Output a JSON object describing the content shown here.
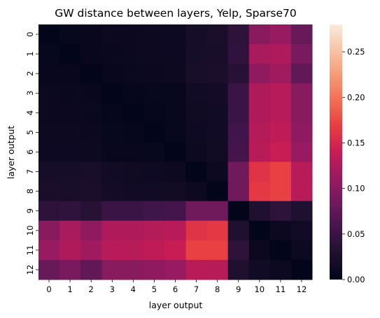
{
  "chart_data": {
    "type": "heatmap",
    "title": "GW distance between layers, Yelp, Sparse70",
    "xlabel": "layer output",
    "ylabel": "layer output",
    "x_categories": [
      "0",
      "1",
      "2",
      "3",
      "4",
      "5",
      "6",
      "7",
      "8",
      "9",
      "10",
      "11",
      "12"
    ],
    "y_categories": [
      "0",
      "1",
      "2",
      "3",
      "4",
      "5",
      "6",
      "7",
      "8",
      "9",
      "10",
      "11",
      "12"
    ],
    "colormap": "rocket",
    "vmin": 0.0,
    "vmax": 0.28,
    "colorbar_ticks": [
      {
        "value": 0.0,
        "label": "0.00"
      },
      {
        "value": 0.05,
        "label": "0.05"
      },
      {
        "value": 0.1,
        "label": "0.10"
      },
      {
        "value": 0.15,
        "label": "0.15"
      },
      {
        "value": 0.2,
        "label": "0.20"
      },
      {
        "value": 0.25,
        "label": "0.25"
      }
    ],
    "values": [
      [
        0.0,
        0.004,
        0.006,
        0.008,
        0.008,
        0.009,
        0.011,
        0.02,
        0.024,
        0.04,
        0.1,
        0.11,
        0.08
      ],
      [
        0.004,
        0.0,
        0.005,
        0.007,
        0.008,
        0.009,
        0.011,
        0.02,
        0.023,
        0.042,
        0.12,
        0.125,
        0.09
      ],
      [
        0.006,
        0.005,
        0.0,
        0.006,
        0.007,
        0.008,
        0.01,
        0.022,
        0.024,
        0.035,
        0.105,
        0.115,
        0.075
      ],
      [
        0.008,
        0.007,
        0.006,
        0.0,
        0.003,
        0.004,
        0.006,
        0.015,
        0.018,
        0.05,
        0.125,
        0.13,
        0.1
      ],
      [
        0.008,
        0.008,
        0.007,
        0.003,
        0.0,
        0.003,
        0.005,
        0.013,
        0.016,
        0.05,
        0.125,
        0.13,
        0.1
      ],
      [
        0.009,
        0.009,
        0.008,
        0.004,
        0.003,
        0.0,
        0.004,
        0.012,
        0.015,
        0.055,
        0.128,
        0.135,
        0.105
      ],
      [
        0.011,
        0.011,
        0.01,
        0.006,
        0.005,
        0.004,
        0.0,
        0.01,
        0.014,
        0.058,
        0.13,
        0.14,
        0.11
      ],
      [
        0.02,
        0.02,
        0.022,
        0.015,
        0.013,
        0.012,
        0.01,
        0.0,
        0.01,
        0.085,
        0.16,
        0.17,
        0.13
      ],
      [
        0.024,
        0.023,
        0.024,
        0.018,
        0.016,
        0.015,
        0.014,
        0.01,
        0.0,
        0.085,
        0.165,
        0.17,
        0.13
      ],
      [
        0.04,
        0.042,
        0.035,
        0.05,
        0.05,
        0.055,
        0.058,
        0.085,
        0.085,
        0.0,
        0.03,
        0.04,
        0.03
      ],
      [
        0.1,
        0.12,
        0.105,
        0.125,
        0.125,
        0.128,
        0.13,
        0.16,
        0.165,
        0.03,
        0.0,
        0.008,
        0.015
      ],
      [
        0.11,
        0.125,
        0.115,
        0.13,
        0.13,
        0.135,
        0.14,
        0.17,
        0.17,
        0.04,
        0.008,
        0.0,
        0.01
      ],
      [
        0.08,
        0.09,
        0.075,
        0.1,
        0.1,
        0.105,
        0.11,
        0.13,
        0.13,
        0.03,
        0.015,
        0.01,
        0.0
      ]
    ]
  }
}
